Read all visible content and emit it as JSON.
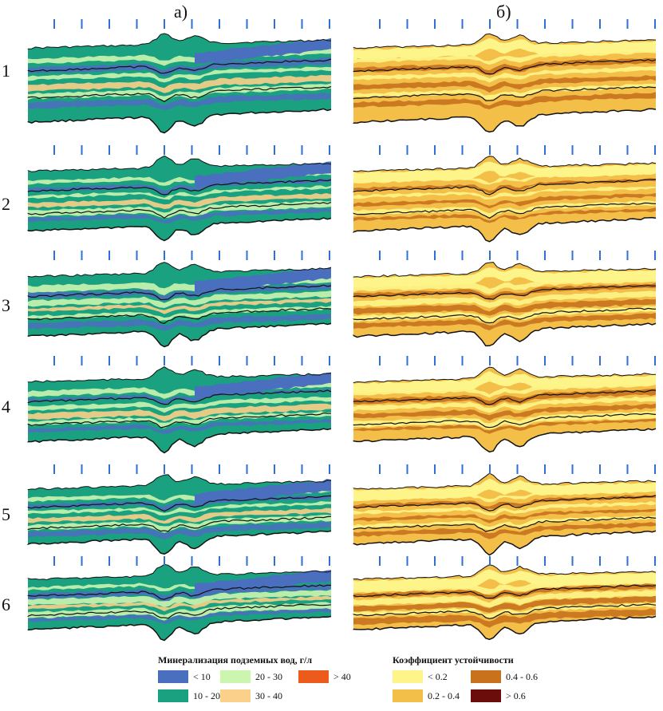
{
  "columns": [
    {
      "label": "а)"
    },
    {
      "label": "б)"
    }
  ],
  "rows": [
    "1",
    "2",
    "3",
    "4",
    "5",
    "6"
  ],
  "legend_a": {
    "title": "Минерализация подземных вод, г/л",
    "items": [
      {
        "label": "< 10",
        "color": "#4a6fbe"
      },
      {
        "label": "20 - 30",
        "color": "#ccf5b0"
      },
      {
        "label": "> 40",
        "color": "#ec5a1c"
      },
      {
        "label": "10 - 20",
        "color": "#1aa17f"
      },
      {
        "label": "30 - 40",
        "color": "#fbd08a"
      }
    ]
  },
  "legend_b": {
    "title": "Коэффициент устойчивости",
    "items": [
      {
        "label": "< 0.2",
        "color": "#fdf58a"
      },
      {
        "label": "0.4 - 0.6",
        "color": "#c8721e"
      },
      {
        "label": "0.2 - 0.4",
        "color": "#f3bf48"
      },
      {
        "label": "> 0.6",
        "color": "#6b0d0a"
      }
    ]
  },
  "colors": {
    "a_base": "#1aa17f",
    "a_low": "#4a6fbe",
    "a_light": "#ccf5b0",
    "a_orange": "#fbd08a",
    "a_red": "#ec5a1c",
    "b_base": "#f3bf48",
    "b_light": "#fdf58a",
    "b_dark": "#c8721e",
    "b_darkest": "#6b0d0a",
    "tick": "#2f6fd6"
  }
}
